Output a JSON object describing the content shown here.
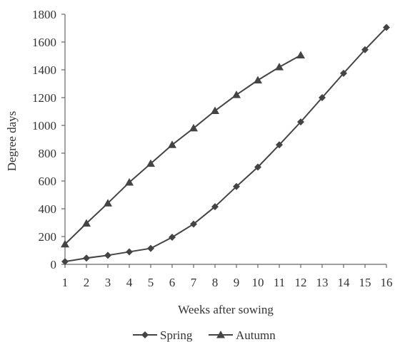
{
  "chart_data": {
    "type": "line",
    "xlabel": "Weeks after sowing",
    "ylabel": "Degree days",
    "xlim": [
      1,
      16
    ],
    "ylim": [
      0,
      1800
    ],
    "x_ticks": [
      1,
      2,
      3,
      4,
      5,
      6,
      7,
      8,
      9,
      10,
      11,
      12,
      13,
      14,
      15,
      16
    ],
    "y_ticks": [
      0,
      200,
      400,
      600,
      800,
      1000,
      1200,
      1400,
      1600,
      1800
    ],
    "grid": false,
    "legend_position": "bottom",
    "series": [
      {
        "name": "Spring",
        "marker": "diamond",
        "color": "#444444",
        "x": [
          1,
          2,
          3,
          4,
          5,
          6,
          7,
          8,
          9,
          10,
          11,
          12,
          13,
          14,
          15,
          16
        ],
        "y": [
          20,
          45,
          65,
          90,
          115,
          195,
          290,
          415,
          560,
          700,
          860,
          1025,
          1200,
          1375,
          1545,
          1705
        ]
      },
      {
        "name": "Autumn",
        "marker": "triangle",
        "color": "#444444",
        "x": [
          1,
          2,
          3,
          4,
          5,
          6,
          7,
          8,
          9,
          10,
          11,
          12
        ],
        "y": [
          145,
          295,
          440,
          590,
          725,
          860,
          980,
          1105,
          1220,
          1325,
          1420,
          1505
        ]
      }
    ]
  }
}
